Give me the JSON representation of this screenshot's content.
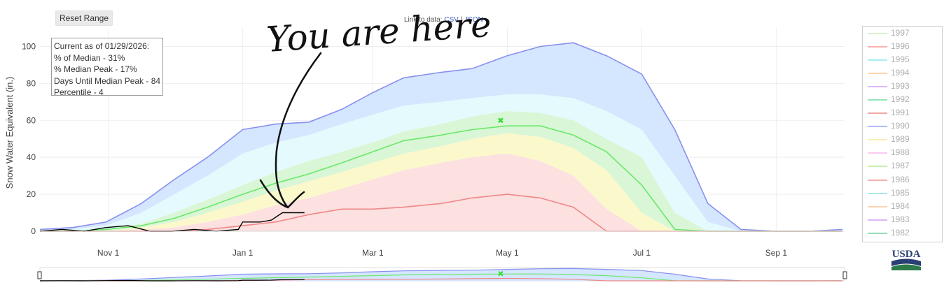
{
  "toolbar": {
    "reset_label": "Reset Range",
    "link_prefix": "Link to data:",
    "link_csv": "CSV",
    "link_sep": "|",
    "link_json": "JSON"
  },
  "info_box": {
    "lines": [
      "Current as of 01/29/2026:",
      "% of Median - 31%",
      "% Median Peak - 17%",
      "Days Until Median Peak - 84",
      "Percentile - 4"
    ]
  },
  "annotation": {
    "text": "You are here"
  },
  "logo": {
    "text": "USDA"
  },
  "colors": {
    "max_band": "#d5e6ff",
    "p90_band": "#e5fafc",
    "p70_band": "#d9f6d6",
    "p50_band": "#fbf8cc",
    "p30_band": "#fde0e0",
    "max_line": "#8890ee",
    "median_line": "#6ae86a",
    "min_line": "#ee8888",
    "current_line": "#000000",
    "median_peak_marker": "#33dd33"
  },
  "chart_data": {
    "type": "area",
    "title": "",
    "xlabel": "",
    "ylabel": "Snow Water Equivalent (in.)",
    "xlim": [
      "Oct 1",
      "Sep 30"
    ],
    "ylim": [
      0,
      110
    ],
    "x_ticks": [
      "Nov 1",
      "Jan 1",
      "Mar 1",
      "May 1",
      "Jul 1",
      "Sep 1"
    ],
    "y_ticks": [
      0,
      20,
      40,
      60,
      80,
      100
    ],
    "grid": true,
    "legend_position": "right",
    "legend": [
      "1997",
      "1996",
      "1995",
      "1994",
      "1993",
      "1992",
      "1991",
      "1990",
      "1989",
      "1988",
      "1987",
      "1986",
      "1985",
      "1984",
      "1983",
      "1982"
    ],
    "legend_colors": [
      "#b6e8a6",
      "#f07070",
      "#66dede",
      "#ffb070",
      "#c080f0",
      "#40d080",
      "#e06060",
      "#7080f0",
      "#f6e070",
      "#f6a0e0",
      "#a0e070",
      "#f07070",
      "#60d6d6",
      "#ffb070",
      "#c080f0",
      "#40c080"
    ],
    "x_days": [
      0,
      15,
      30,
      46,
      61,
      76,
      92,
      107,
      122,
      137,
      151,
      165,
      182,
      196,
      212,
      227,
      242,
      257,
      273,
      288,
      303,
      318,
      334,
      349,
      364
    ],
    "series": [
      {
        "name": "",
        "role": "max",
        "values": [
          1,
          2,
          5,
          15,
          28,
          40,
          55,
          58,
          59,
          66,
          75,
          83,
          86,
          88,
          95,
          100,
          102,
          95,
          85,
          55,
          15,
          1,
          0,
          0,
          1
        ]
      },
      {
        "name": "",
        "role": "p90",
        "values": [
          0,
          1,
          3,
          10,
          20,
          30,
          42,
          48,
          52,
          58,
          63,
          68,
          70,
          72,
          74,
          74,
          72,
          65,
          55,
          30,
          5,
          0,
          0,
          0,
          0
        ]
      },
      {
        "name": "",
        "role": "p70",
        "values": [
          0,
          0,
          1,
          4,
          10,
          17,
          25,
          32,
          38,
          43,
          48,
          54,
          58,
          62,
          65,
          64,
          60,
          50,
          40,
          10,
          0,
          0,
          0,
          0,
          0
        ]
      },
      {
        "name": "",
        "role": "median",
        "values": [
          0,
          0,
          1,
          3,
          7,
          13,
          20,
          26,
          31,
          37,
          43,
          49,
          52,
          55,
          57,
          57,
          52,
          43,
          25,
          1,
          0,
          0,
          0,
          0,
          0
        ]
      },
      {
        "name": "",
        "role": "p50",
        "values": [
          0,
          0,
          0,
          2,
          5,
          10,
          16,
          22,
          27,
          32,
          37,
          42,
          46,
          50,
          53,
          51,
          45,
          33,
          10,
          0,
          0,
          0,
          0,
          0,
          0
        ]
      },
      {
        "name": "",
        "role": "p30",
        "values": [
          0,
          0,
          0,
          1,
          2,
          5,
          9,
          14,
          18,
          23,
          28,
          33,
          37,
          40,
          42,
          38,
          30,
          12,
          0,
          0,
          0,
          0,
          0,
          0,
          0
        ]
      },
      {
        "name": "",
        "role": "min",
        "values": [
          0,
          0,
          0,
          0,
          0,
          1,
          3,
          5,
          9,
          12,
          12,
          13,
          15,
          18,
          20,
          18,
          13,
          0,
          0,
          0,
          0,
          0,
          0,
          0,
          0
        ]
      }
    ],
    "current_year": {
      "x_days": [
        0,
        10,
        20,
        30,
        40,
        50,
        60,
        70,
        80,
        90,
        92,
        100,
        105,
        110,
        114,
        115,
        118,
        120
      ],
      "values": [
        0,
        1,
        0,
        2,
        3,
        0,
        0,
        1,
        0,
        1,
        5,
        5,
        6,
        10,
        10,
        10,
        10,
        10
      ]
    },
    "median_peak": {
      "x_day": 209,
      "value": 60
    }
  }
}
